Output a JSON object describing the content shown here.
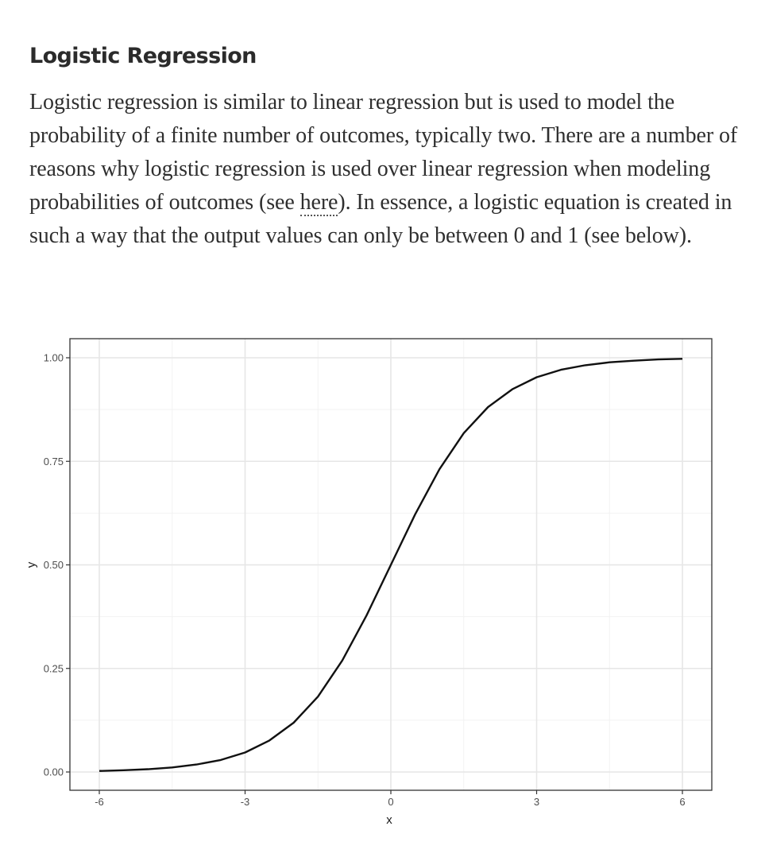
{
  "article": {
    "heading": "Logistic Regression",
    "para_before_link": "Logistic regression is similar to linear regression but is used to model the probability of a finite number of outcomes, typically two. There are a number of reasons why logistic regression is used over linear regression when modeling probabilities of outcomes (see ",
    "link_text": "here",
    "para_after_link": "). In essence, a logistic equation is created in such a way that the output values can only be between 0 and 1 (see below)."
  },
  "chart_data": {
    "type": "line",
    "title": "",
    "xlabel": "x",
    "ylabel": "y",
    "xlim": [
      -6,
      6
    ],
    "ylim": [
      0,
      1
    ],
    "x_ticks": [
      "-6",
      "-3",
      "0",
      "3",
      "6"
    ],
    "y_ticks": [
      "0.00",
      "0.25",
      "0.50",
      "0.75",
      "1.00"
    ],
    "grid": true,
    "series": [
      {
        "x": [
          -6,
          -5.5,
          -5,
          -4.5,
          -4,
          -3.5,
          -3,
          -2.5,
          -2,
          -1.5,
          -1,
          -0.5,
          0,
          0.5,
          1,
          1.5,
          2,
          2.5,
          3,
          3.5,
          4,
          4.5,
          5,
          5.5,
          6
        ],
        "values": [
          0.0025,
          0.0041,
          0.0067,
          0.011,
          0.018,
          0.029,
          0.047,
          0.076,
          0.119,
          0.182,
          0.269,
          0.378,
          0.5,
          0.622,
          0.731,
          0.818,
          0.881,
          0.924,
          0.953,
          0.971,
          0.982,
          0.989,
          0.993,
          0.996,
          0.9975
        ]
      }
    ]
  }
}
